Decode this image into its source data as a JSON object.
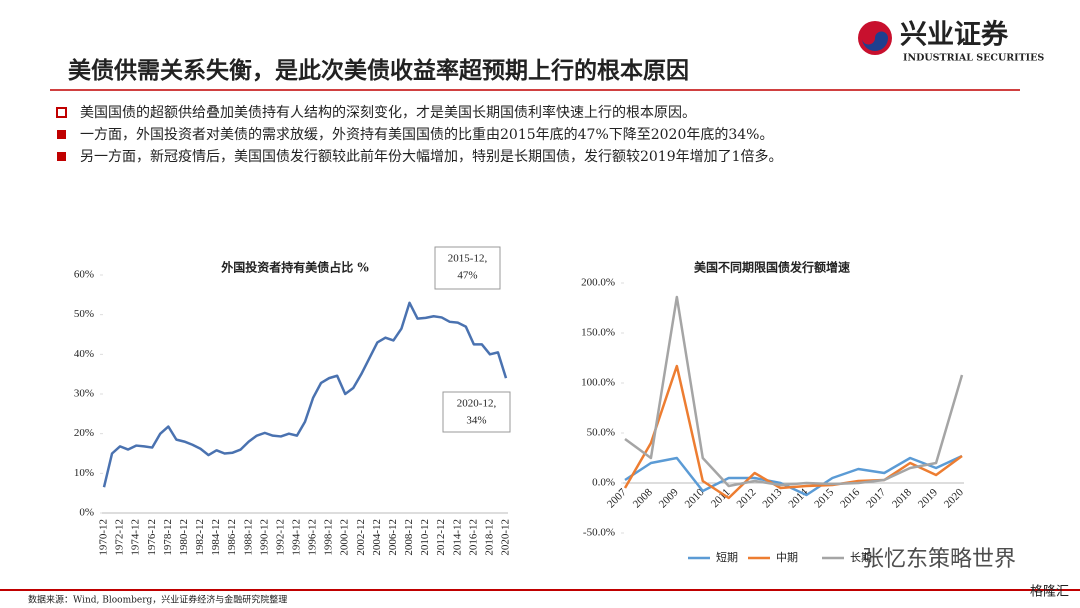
{
  "header": {
    "title": "美债供需关系失衡，是此次美债收益率超预期上行的根本原因",
    "logo": "兴业证券",
    "logo_en": "INDUSTRIAL SECURITIES"
  },
  "bullets": [
    "美国国债的超额供给叠加美债持有人结构的深刻变化，才是美国长期国债利率快速上行的根本原因。",
    "一方面，外国投资者对美债的需求放缓，外资持有美国国债的比重由2015年底的47%下降至2020年底的34%。",
    "另一方面，新冠疫情后，美国国债发行额较此前年份大幅增加，特别是长期国债，发行额较2019年增加了1倍多。"
  ],
  "chart_data": [
    {
      "type": "line",
      "title": "外国投资者持有美债占比 %",
      "categories": [
        "1970-12",
        null,
        "1972-12",
        null,
        "1974-12",
        null,
        "1976-12",
        null,
        "1978-12",
        null,
        "1980-12",
        null,
        "1982-12",
        null,
        "1984-12",
        null,
        "1986-12",
        null,
        "1988-12",
        null,
        "1990-12",
        null,
        "1992-12",
        null,
        "1994-12",
        null,
        "1996-12",
        null,
        "1998-12",
        null,
        "2000-12",
        null,
        "2002-12",
        null,
        "2004-12",
        null,
        "2006-12",
        null,
        "2008-12",
        null,
        "2010-12",
        null,
        "2012-12",
        null,
        "2014-12",
        null,
        "2016-12",
        null,
        "2018-12",
        null,
        "2020-12"
      ],
      "series": [
        {
          "name": null,
          "color": "#4a72b0",
          "values": [
            6.5,
            15,
            16.8,
            16,
            17,
            16.8,
            16.5,
            20,
            21.8,
            18.5,
            18,
            17.2,
            16.2,
            14.6,
            15.8,
            15,
            15.2,
            16,
            18,
            19.5,
            20.2,
            19.5,
            19.3,
            20,
            19.5,
            23,
            29,
            32.8,
            34,
            34.6,
            30,
            31.5,
            35,
            39,
            43,
            44.2,
            43.5,
            46.5,
            53,
            49,
            49.2,
            49.6,
            49.3,
            48.2,
            48,
            47,
            42.5,
            42.5,
            40,
            40.5,
            34
          ]
        }
      ],
      "ylim": [
        0,
        60
      ],
      "yticks": [
        {
          "value": 0,
          "label": "0%"
        },
        {
          "value": 10,
          "label": "10%"
        },
        {
          "value": 20,
          "label": "20%"
        },
        {
          "value": 30,
          "label": "30%"
        },
        {
          "value": 40,
          "label": "40%"
        },
        {
          "value": 50,
          "label": "50%"
        },
        {
          "value": 60,
          "label": "60%"
        }
      ],
      "grid": false,
      "annotations": [
        {
          "lines": [
            "2015-12,",
            "47%"
          ]
        },
        {
          "lines": [
            "2020-12,",
            "34%"
          ]
        }
      ]
    },
    {
      "type": "line",
      "title": "美国不同期限国债发行额增速",
      "categories": [
        "2007",
        "2008",
        "2009",
        "2010",
        "2011",
        "2012",
        "2013",
        "2014",
        "2015",
        "2016",
        "2017",
        "2018",
        "2019",
        "2020"
      ],
      "series": [
        {
          "name": "短期",
          "color": "#5b9bd5",
          "values": [
            3,
            20,
            25,
            -8,
            5,
            5,
            0,
            -12,
            5,
            14,
            10,
            25,
            15,
            27
          ]
        },
        {
          "name": "中期",
          "color": "#ed7d31",
          "values": [
            -5,
            40,
            117,
            2,
            -15,
            10,
            -5,
            -3,
            -2,
            2,
            3,
            20,
            8,
            27
          ]
        },
        {
          "name": "长期",
          "color": "#a5a5a5",
          "values": [
            44,
            25,
            186,
            25,
            -3,
            2,
            -2,
            0,
            -1,
            0,
            3,
            15,
            20,
            108
          ]
        }
      ],
      "ylim": [
        -50,
        200
      ],
      "yticks": [
        {
          "value": -50,
          "label": "-50.0%"
        },
        {
          "value": 0,
          "label": "0.0%"
        },
        {
          "value": 50,
          "label": "50.0%"
        },
        {
          "value": 100,
          "label": "100.0%"
        },
        {
          "value": 150,
          "label": "150.0%"
        },
        {
          "value": 200,
          "label": "200.0%"
        }
      ],
      "grid": false,
      "legend": "bottom"
    }
  ],
  "footer": {
    "source": "数据来源：Wind, Bloomberg，兴业证券经济与金融研究院整理",
    "watermark": "张忆东策略世界",
    "watermark2": "格隆汇"
  }
}
